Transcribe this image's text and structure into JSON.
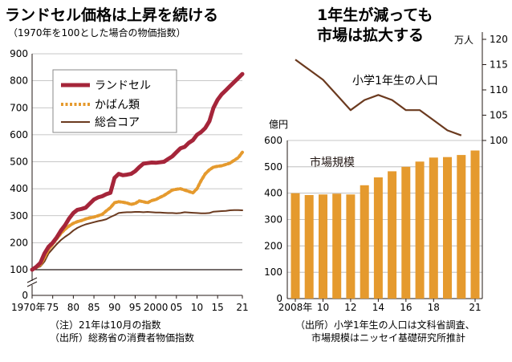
{
  "chart_data": [
    {
      "type": "line",
      "title": "ランドセル価格は上昇を続ける",
      "subtitle": "（1970年を100とした場合の物価指数）",
      "ylim": [
        0,
        900
      ],
      "yticks": [
        "0",
        "100",
        "200",
        "300",
        "400",
        "500",
        "600",
        "700",
        "800",
        "900"
      ],
      "xlim": [
        1970,
        2021
      ],
      "xticks": [
        {
          "x": 1970,
          "label": "1970年"
        },
        {
          "x": 1975,
          "label": "75"
        },
        {
          "x": 1980,
          "label": "80"
        },
        {
          "x": 1985,
          "label": "85"
        },
        {
          "x": 1990,
          "label": "90"
        },
        {
          "x": 1995,
          "label": "95"
        },
        {
          "x": 2000,
          "label": "2000"
        },
        {
          "x": 2005,
          "label": "05"
        },
        {
          "x": 2010,
          "label": "10"
        },
        {
          "x": 2015,
          "label": "15"
        },
        {
          "x": 2021,
          "label": "21"
        }
      ],
      "gridlines": true,
      "legend_position": "top-left",
      "series": [
        {
          "name": "ランドセル",
          "color": "#a5253a",
          "style": "solid",
          "x": [
            1970,
            1971,
            1972,
            1973,
            1974,
            1975,
            1976,
            1977,
            1978,
            1979,
            1980,
            1981,
            1982,
            1983,
            1984,
            1985,
            1986,
            1987,
            1988,
            1989,
            1990,
            1991,
            1992,
            1993,
            1994,
            1995,
            1996,
            1997,
            1998,
            1999,
            2000,
            2001,
            2002,
            2003,
            2004,
            2005,
            2006,
            2007,
            2008,
            2009,
            2010,
            2011,
            2012,
            2013,
            2014,
            2015,
            2016,
            2017,
            2018,
            2019,
            2020,
            2021
          ],
          "values": [
            100,
            110,
            125,
            160,
            185,
            200,
            220,
            245,
            265,
            290,
            310,
            322,
            325,
            330,
            345,
            360,
            368,
            372,
            380,
            385,
            440,
            455,
            450,
            452,
            455,
            465,
            480,
            493,
            495,
            497,
            496,
            498,
            500,
            510,
            520,
            535,
            550,
            555,
            570,
            580,
            600,
            610,
            625,
            650,
            700,
            730,
            750,
            765,
            780,
            795,
            810,
            825
          ]
        },
        {
          "name": "かばん類",
          "color": "#e59a2e",
          "style": "dotted",
          "x": [
            1970,
            1971,
            1972,
            1973,
            1974,
            1975,
            1976,
            1977,
            1978,
            1979,
            1980,
            1981,
            1982,
            1983,
            1984,
            1985,
            1986,
            1987,
            1988,
            1989,
            1990,
            1991,
            1992,
            1993,
            1994,
            1995,
            1996,
            1997,
            1998,
            1999,
            2000,
            2001,
            2002,
            2003,
            2004,
            2005,
            2006,
            2007,
            2008,
            2009,
            2010,
            2011,
            2012,
            2013,
            2014,
            2015,
            2016,
            2017,
            2018,
            2019,
            2020,
            2021
          ],
          "values": [
            100,
            108,
            118,
            145,
            175,
            195,
            215,
            235,
            250,
            262,
            272,
            278,
            282,
            288,
            292,
            295,
            300,
            305,
            318,
            330,
            348,
            352,
            350,
            347,
            342,
            345,
            355,
            352,
            348,
            356,
            360,
            368,
            375,
            385,
            395,
            398,
            400,
            395,
            390,
            385,
            400,
            430,
            455,
            470,
            480,
            483,
            485,
            490,
            495,
            505,
            515,
            535
          ]
        },
        {
          "name": "総合コア",
          "color": "#6b3a1f",
          "style": "solid",
          "x": [
            1970,
            1971,
            1972,
            1973,
            1974,
            1975,
            1976,
            1977,
            1978,
            1979,
            1980,
            1981,
            1982,
            1983,
            1984,
            1985,
            1986,
            1987,
            1988,
            1989,
            1990,
            1991,
            1992,
            1993,
            1994,
            1995,
            1996,
            1997,
            1998,
            1999,
            2000,
            2001,
            2002,
            2003,
            2004,
            2005,
            2006,
            2007,
            2008,
            2009,
            2010,
            2011,
            2012,
            2013,
            2014,
            2015,
            2016,
            2017,
            2018,
            2019,
            2020,
            2021
          ],
          "values": [
            100,
            106,
            112,
            130,
            160,
            178,
            195,
            210,
            222,
            232,
            245,
            255,
            262,
            268,
            272,
            276,
            280,
            283,
            287,
            295,
            302,
            310,
            312,
            313,
            313,
            314,
            314,
            313,
            314,
            313,
            312,
            312,
            311,
            310,
            310,
            309,
            310,
            313,
            312,
            311,
            310,
            309,
            309,
            310,
            315,
            316,
            317,
            318,
            320,
            321,
            321,
            320
          ]
        }
      ],
      "notes": [
        "（注）21年は10月の指数",
        "（出所）総務省の消費者物価指数"
      ]
    },
    {
      "type": "bar+line",
      "title": [
        "1年生が減っても",
        "市場は拡大する"
      ],
      "bar_series": {
        "name": "市場規模",
        "unit": "億円",
        "color": "#e59a2e",
        "ylim": [
          0,
          600
        ],
        "yticks": [
          "0",
          "100",
          "200",
          "300",
          "400",
          "500",
          "600"
        ],
        "x": [
          2008,
          2009,
          2010,
          2011,
          2012,
          2013,
          2014,
          2015,
          2016,
          2017,
          2018,
          2019,
          2020,
          2021
        ],
        "values": [
          400,
          393,
          395,
          398,
          395,
          430,
          460,
          483,
          500,
          520,
          535,
          537,
          545,
          562
        ]
      },
      "line_series": {
        "name": "小学1年生の人口",
        "unit": "万人",
        "color": "#6b3a1f",
        "ylim": [
          100,
          120
        ],
        "yticks": [
          "100",
          "105",
          "110",
          "115",
          "120"
        ],
        "x": [
          2008,
          2009,
          2010,
          2011,
          2012,
          2013,
          2014,
          2015,
          2016,
          2017,
          2018,
          2019,
          2020
        ],
        "values": [
          116,
          114,
          112,
          109,
          106,
          108,
          109,
          108,
          106,
          106,
          104,
          102,
          101
        ]
      },
      "xticks": [
        {
          "x": 2008,
          "label": "2008年"
        },
        {
          "x": 2010,
          "label": "10"
        },
        {
          "x": 2012,
          "label": "12"
        },
        {
          "x": 2014,
          "label": "14"
        },
        {
          "x": 2016,
          "label": "16"
        },
        {
          "x": 2018,
          "label": "18"
        },
        {
          "x": 2021,
          "label": "21"
        }
      ],
      "gridlines": true,
      "notes": [
        "（出所）小学1年生の人口は文科省調査、",
        "市場規模はニッセイ基礎研究所推計"
      ]
    }
  ]
}
